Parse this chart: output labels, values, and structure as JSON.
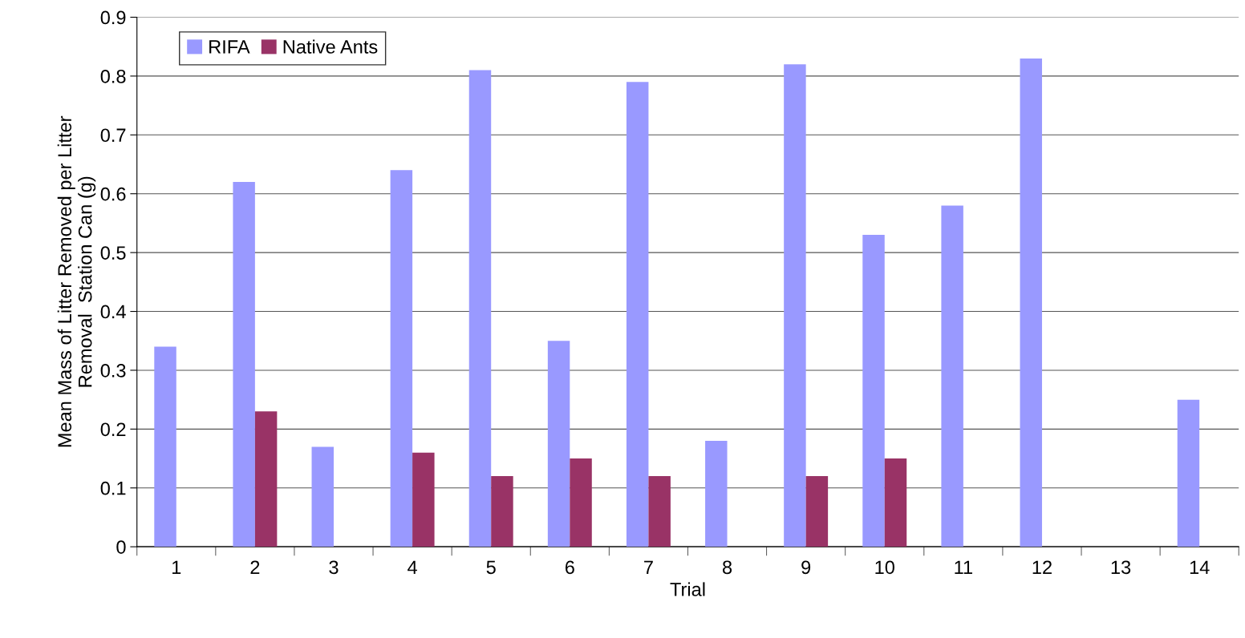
{
  "chart_data": {
    "type": "bar",
    "xlabel": "Trial",
    "ylabel": "Mean Mass of Litter Removed per Litter\nRemoval  Station Can (g)",
    "categories": [
      "1",
      "2",
      "3",
      "4",
      "5",
      "6",
      "7",
      "8",
      "9",
      "10",
      "11",
      "12",
      "13",
      "14"
    ],
    "series": [
      {
        "name": "RIFA",
        "color": "#9999ff",
        "values": [
          0.34,
          0.62,
          0.17,
          0.64,
          0.81,
          0.35,
          0.79,
          0.18,
          0.82,
          0.53,
          0.58,
          0.83,
          null,
          0.25
        ]
      },
      {
        "name": "Native Ants",
        "color": "#993366",
        "values": [
          null,
          0.23,
          null,
          0.16,
          0.12,
          0.15,
          0.12,
          null,
          0.12,
          0.15,
          null,
          null,
          null,
          null
        ]
      }
    ],
    "ylim": [
      0,
      0.9
    ],
    "yticks": [
      0,
      0.1,
      0.2,
      0.3,
      0.4,
      0.5,
      0.6,
      0.7,
      0.8,
      0.9
    ],
    "grid": "y",
    "legend": "top left"
  }
}
